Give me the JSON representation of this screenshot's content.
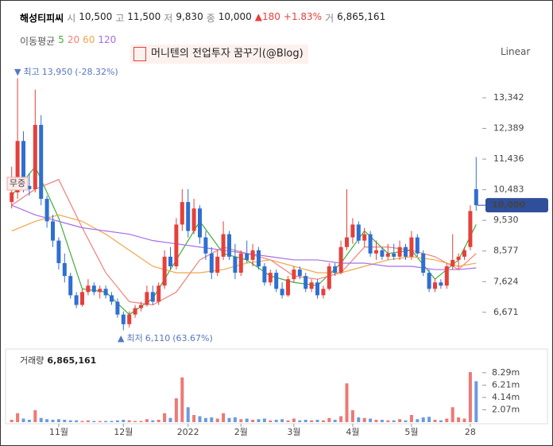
{
  "header": {
    "name": "해성티피씨",
    "fields": [
      {
        "label": "시",
        "value": "10,500"
      },
      {
        "label": "고",
        "value": "11,500"
      },
      {
        "label": "저",
        "value": "9,830"
      },
      {
        "label": "종",
        "value": "10,000"
      }
    ],
    "change": "▲180",
    "change_pct": "+1.83%",
    "volume_field": {
      "label": "거",
      "value": "6,865,161"
    }
  },
  "watermark": "머니텐의 전업투자 꿈꾸기(@Blog)",
  "scale_mode": "Linear",
  "chart_data": {
    "type": "candlestick",
    "ma_title": "이동평균",
    "categories": [
      null,
      null,
      null,
      null,
      null,
      null,
      null,
      null,
      "11월",
      null,
      null,
      null,
      null,
      null,
      null,
      null,
      null,
      null,
      null,
      "12월",
      null,
      null,
      null,
      null,
      null,
      null,
      null,
      null,
      null,
      null,
      "2022",
      null,
      null,
      null,
      null,
      null,
      null,
      null,
      null,
      "2월",
      null,
      null,
      null,
      null,
      null,
      null,
      null,
      null,
      "3월",
      null,
      null,
      null,
      null,
      null,
      null,
      null,
      null,
      null,
      "4월",
      null,
      null,
      null,
      null,
      null,
      null,
      null,
      null,
      null,
      "5월",
      null,
      null,
      null,
      null,
      null,
      null,
      null,
      null,
      null,
      "28",
      null
    ],
    "open": [
      10100,
      10400,
      12000,
      10600,
      10500,
      12500,
      10200,
      9500,
      8900,
      8200,
      7800,
      7200,
      6900,
      7300,
      7500,
      7300,
      7400,
      7200,
      7000,
      6600,
      6300,
      6600,
      6800,
      6900,
      7300,
      7000,
      7500,
      8400,
      8100,
      9400,
      10100,
      9200,
      9900,
      9000,
      8500,
      7900,
      8400,
      9100,
      8400,
      7900,
      8500,
      8300,
      8600,
      8100,
      7600,
      7900,
      7400,
      7200,
      7700,
      8000,
      7800,
      7400,
      7600,
      7200,
      7400,
      8100,
      7900,
      8700,
      9000,
      9400,
      8900,
      9100,
      8500,
      8600,
      8400,
      8500,
      8400,
      8700,
      8400,
      9000,
      8500,
      7900,
      7400,
      7600,
      7500,
      8100,
      8300,
      8400,
      8700,
      10500
    ],
    "high": [
      11200,
      13950,
      12300,
      11000,
      13600,
      12800,
      10300,
      9700,
      9000,
      8500,
      7900,
      7300,
      7400,
      7700,
      7600,
      7500,
      7500,
      7300,
      7100,
      6700,
      6700,
      6900,
      7000,
      7500,
      7500,
      7600,
      8600,
      8700,
      9600,
      10500,
      10500,
      10200,
      10000,
      9200,
      8700,
      8600,
      9500,
      9200,
      8800,
      8600,
      8900,
      8800,
      8700,
      8200,
      8000,
      8000,
      7600,
      7800,
      8100,
      8100,
      7900,
      7700,
      7700,
      7500,
      8200,
      8200,
      8900,
      10500,
      9600,
      9500,
      9300,
      9200,
      8900,
      8700,
      8800,
      8800,
      8900,
      8800,
      9200,
      9100,
      8600,
      8000,
      7700,
      7700,
      8200,
      9100,
      8500,
      8700,
      10000,
      11500
    ],
    "low": [
      9900,
      10200,
      10400,
      10300,
      10400,
      10000,
      9300,
      8700,
      8000,
      7600,
      7100,
      6800,
      6850,
      7200,
      7200,
      7100,
      7100,
      6900,
      6500,
      6110,
      6200,
      6500,
      6700,
      6850,
      6900,
      6900,
      7400,
      8000,
      8000,
      9200,
      9000,
      9100,
      8800,
      8300,
      7700,
      7800,
      8300,
      8300,
      7700,
      7800,
      8200,
      8100,
      8000,
      7500,
      7500,
      7300,
      7100,
      7150,
      7600,
      7700,
      7300,
      7300,
      7100,
      7100,
      7350,
      7800,
      7850,
      8600,
      8800,
      8800,
      8700,
      8400,
      8300,
      8300,
      8300,
      8300,
      8300,
      8300,
      8300,
      8400,
      7800,
      7300,
      7300,
      7400,
      7400,
      8000,
      8000,
      8300,
      8600,
      9830
    ],
    "close": [
      10400,
      12000,
      10600,
      10500,
      12500,
      10200,
      9500,
      8900,
      8200,
      7800,
      7200,
      6900,
      7300,
      7500,
      7300,
      7400,
      7200,
      7000,
      6600,
      6300,
      6600,
      6800,
      6900,
      7300,
      7000,
      7500,
      8400,
      8100,
      9400,
      10100,
      9200,
      9900,
      9000,
      8500,
      7900,
      8400,
      9100,
      8400,
      7900,
      8500,
      8300,
      8600,
      8100,
      7600,
      7900,
      7400,
      7200,
      7700,
      8000,
      7800,
      7400,
      7600,
      7200,
      7400,
      8100,
      7900,
      8700,
      9000,
      9400,
      8900,
      9100,
      8500,
      8600,
      8400,
      8500,
      8400,
      8700,
      8400,
      9000,
      8500,
      7900,
      7400,
      7600,
      7500,
      8100,
      8300,
      8400,
      8600,
      9820,
      10000
    ],
    "up_color": "#e5403b",
    "down_color": "#2f6fd1",
    "ma_series": [
      {
        "name": "5",
        "color": "#3fae3b",
        "x": [
          0,
          4,
          8,
          12,
          16,
          20,
          24,
          28,
          32,
          36,
          40,
          44,
          48,
          52,
          56,
          60,
          64,
          68,
          72,
          76,
          79
        ],
        "values": [
          10300,
          11200,
          9600,
          7400,
          7300,
          6600,
          7100,
          8300,
          9500,
          8500,
          8300,
          7800,
          7600,
          7500,
          8200,
          9200,
          8500,
          8600,
          7700,
          8300,
          9400
        ]
      },
      {
        "name": "20",
        "color": "#f07f7a",
        "x": [
          0,
          4,
          8,
          12,
          16,
          20,
          24,
          28,
          32,
          36,
          40,
          44,
          48,
          52,
          56,
          60,
          64,
          68,
          72,
          76,
          79
        ],
        "values": [
          10000,
          10500,
          10800,
          9300,
          7900,
          7000,
          6900,
          7300,
          8300,
          8700,
          8500,
          8300,
          7800,
          7700,
          7900,
          8700,
          8700,
          8600,
          8400,
          8000,
          8500
        ]
      },
      {
        "name": "60",
        "color": "#f0a64a",
        "x": [
          0,
          4,
          8,
          12,
          16,
          20,
          24,
          28,
          32,
          36,
          40,
          44,
          48,
          52,
          56,
          60,
          64,
          68,
          72,
          76,
          79
        ],
        "values": [
          9200,
          9500,
          9700,
          9500,
          9100,
          8600,
          8100,
          7900,
          7900,
          8000,
          8200,
          8300,
          8100,
          7900,
          7900,
          8100,
          8300,
          8400,
          8300,
          8100,
          8200
        ]
      },
      {
        "name": "120",
        "color": "#a66ee8",
        "x": [
          0,
          4,
          8,
          12,
          16,
          20,
          24,
          28,
          32,
          36,
          40,
          44,
          48,
          52,
          56,
          60,
          64,
          68,
          72,
          76,
          79
        ],
        "values": [
          10000,
          9700,
          9500,
          9300,
          9200,
          9100,
          8900,
          8800,
          8700,
          8600,
          8500,
          8400,
          8300,
          8300,
          8200,
          8200,
          8100,
          8100,
          8000,
          8000,
          8050
        ]
      }
    ],
    "ylim": [
      5850,
      14010
    ],
    "yticks": [
      {
        "value": 13342,
        "label": "13,342"
      },
      {
        "value": 12389,
        "label": "12,389"
      },
      {
        "value": 11436,
        "label": "11,436"
      },
      {
        "value": 10483,
        "label": "10,483"
      },
      {
        "value": 9530,
        "label": "9,530"
      },
      {
        "value": 8577,
        "label": "8,577"
      },
      {
        "value": 7624,
        "label": "7,624"
      },
      {
        "value": 6671,
        "label": "6,671"
      }
    ],
    "last_price": {
      "value": 10000,
      "label": "10,000"
    },
    "annotations": [
      {
        "marker": "▼",
        "text": "최고",
        "value": "13,950",
        "change": "(-28.32%)"
      },
      {
        "marker": "▲",
        "text": "최저",
        "value": "6,110",
        "change": "(63.67%)"
      }
    ],
    "event_label": "무증",
    "volume_title": "거래량",
    "volume_label": "6,865,161",
    "volume": [
      400000,
      1500000,
      600000,
      400000,
      2000000,
      700000,
      500000,
      400000,
      500000,
      400000,
      300000,
      300000,
      200000,
      300000,
      200000,
      200000,
      200000,
      200000,
      300000,
      400000,
      300000,
      200000,
      200000,
      500000,
      300000,
      400000,
      1500000,
      700000,
      4000000,
      7500000,
      2500000,
      1200000,
      1000000,
      700000,
      800000,
      600000,
      1500000,
      700000,
      800000,
      500000,
      600000,
      400000,
      500000,
      600000,
      300000,
      400000,
      500000,
      300000,
      600000,
      300000,
      400000,
      300000,
      400000,
      300000,
      700000,
      400000,
      1000000,
      6500000,
      2000000,
      800000,
      700000,
      600000,
      400000,
      400000,
      300000,
      300000,
      500000,
      300000,
      1200000,
      500000,
      800000,
      900000,
      400000,
      300000,
      600000,
      2500000,
      800000,
      600000,
      8400000,
      6865161
    ],
    "volume_ylim": [
      0,
      12000000
    ],
    "volume_yticks": [
      {
        "value": 8290000,
        "label": "8.29m"
      },
      {
        "value": 6210000,
        "label": "6.21m"
      },
      {
        "value": 4140000,
        "label": "4.14m"
      },
      {
        "value": 2070000,
        "label": "2.07m"
      }
    ]
  }
}
